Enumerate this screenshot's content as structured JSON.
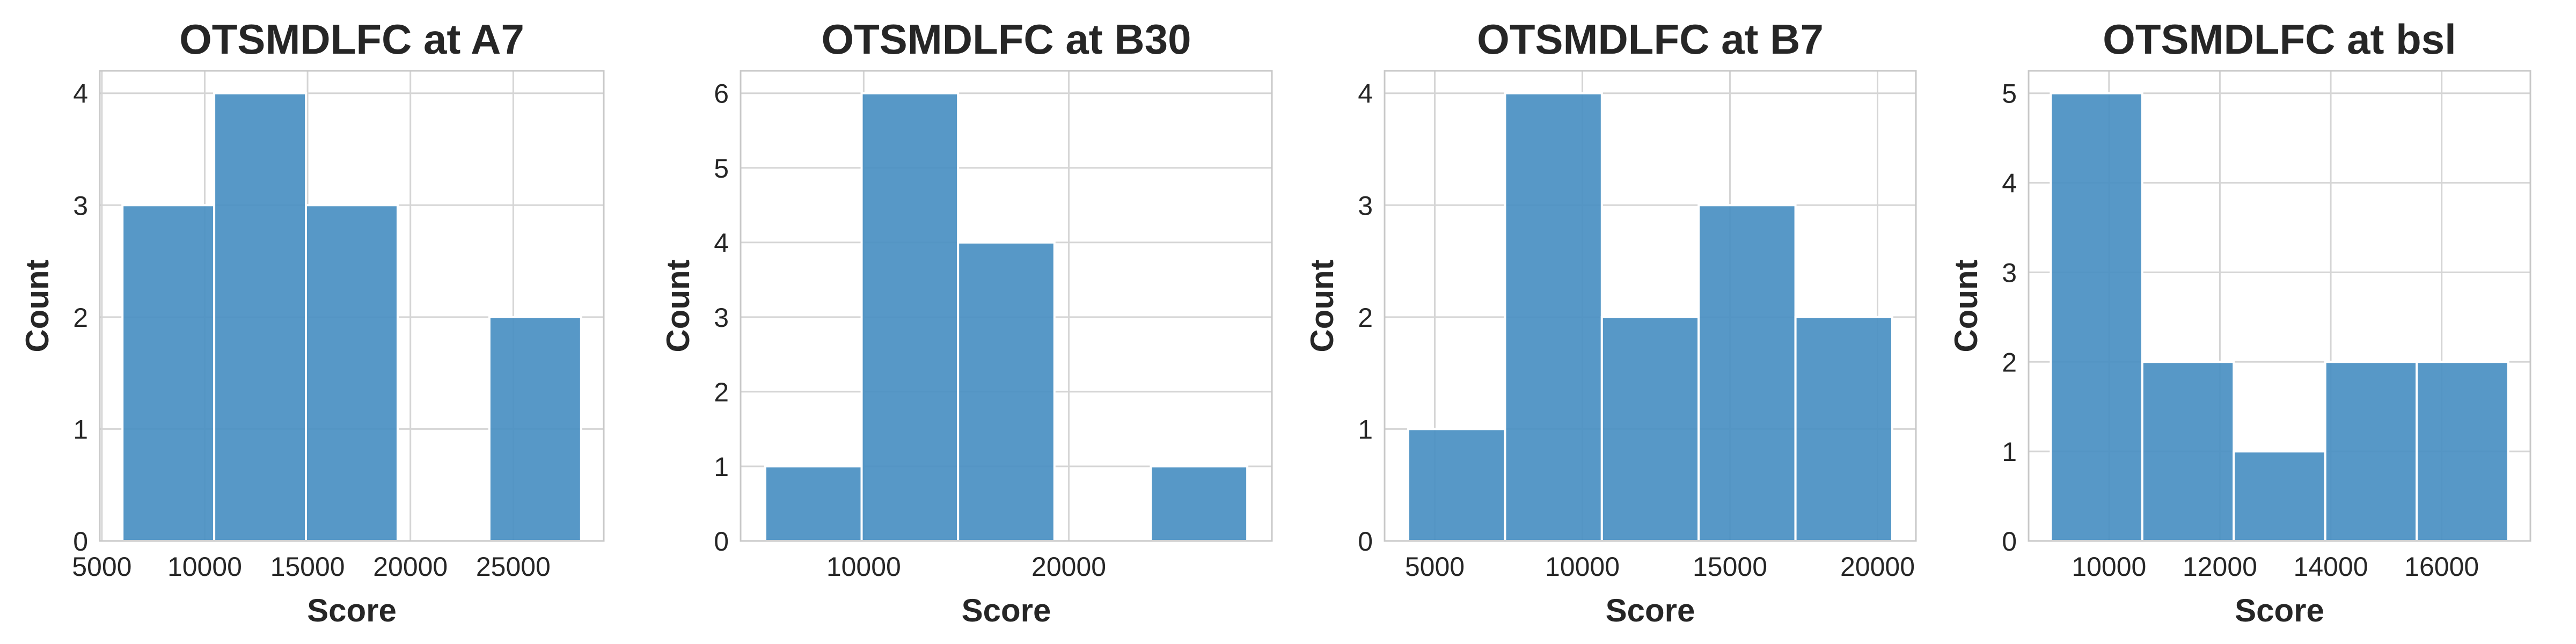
{
  "chart_data": [
    {
      "type": "bar",
      "title": "OTSMDLFC at A7",
      "xlabel": "Score",
      "ylabel": "Count",
      "bins": [
        {
          "x0": 6000,
          "x1": 10460,
          "count": 3
        },
        {
          "x0": 10460,
          "x1": 14920,
          "count": 4
        },
        {
          "x0": 14920,
          "x1": 19380,
          "count": 3
        },
        {
          "x0": 19380,
          "x1": 23840,
          "count": 0
        },
        {
          "x0": 23840,
          "x1": 28300,
          "count": 2
        }
      ],
      "xlim": [
        4900,
        29400
      ],
      "ylim": [
        0,
        4.2
      ],
      "xticks": [
        5000,
        10000,
        15000,
        20000,
        25000
      ],
      "xtick_labels": [
        "5000",
        "10000",
        "15000",
        "20000",
        "25000"
      ],
      "yticks": [
        0,
        1,
        2,
        3,
        4
      ],
      "ytick_labels": [
        "0",
        "1",
        "2",
        "3",
        "4"
      ],
      "grid": true
    },
    {
      "type": "bar",
      "title": "OTSMDLFC at B30",
      "xlabel": "Score",
      "ylabel": "Count",
      "bins": [
        {
          "x0": 5200,
          "x1": 9900,
          "count": 1
        },
        {
          "x0": 9900,
          "x1": 14600,
          "count": 6
        },
        {
          "x0": 14600,
          "x1": 19300,
          "count": 4
        },
        {
          "x0": 19300,
          "x1": 24000,
          "count": 0
        },
        {
          "x0": 24000,
          "x1": 28700,
          "count": 1
        }
      ],
      "xlim": [
        4000,
        29900
      ],
      "ylim": [
        0,
        6.3
      ],
      "xticks": [
        10000,
        20000
      ],
      "xtick_labels": [
        "10000",
        "20000"
      ],
      "yticks": [
        0,
        1,
        2,
        3,
        4,
        5,
        6
      ],
      "ytick_labels": [
        "0",
        "1",
        "2",
        "3",
        "4",
        "5",
        "6"
      ],
      "grid": true
    },
    {
      "type": "bar",
      "title": "OTSMDLFC at B7",
      "xlabel": "Score",
      "ylabel": "Count",
      "bins": [
        {
          "x0": 4100,
          "x1": 7380,
          "count": 1
        },
        {
          "x0": 7380,
          "x1": 10660,
          "count": 4
        },
        {
          "x0": 10660,
          "x1": 13940,
          "count": 2
        },
        {
          "x0": 13940,
          "x1": 17220,
          "count": 3
        },
        {
          "x0": 17220,
          "x1": 20500,
          "count": 2
        }
      ],
      "xlim": [
        3300,
        21300
      ],
      "ylim": [
        0,
        4.2
      ],
      "xticks": [
        5000,
        10000,
        15000,
        20000
      ],
      "xtick_labels": [
        "5000",
        "10000",
        "15000",
        "20000"
      ],
      "yticks": [
        0,
        1,
        2,
        3,
        4
      ],
      "ytick_labels": [
        "0",
        "1",
        "2",
        "3",
        "4"
      ],
      "grid": true
    },
    {
      "type": "bar",
      "title": "OTSMDLFC at bsl",
      "xlabel": "Score",
      "ylabel": "Count",
      "bins": [
        {
          "x0": 8950,
          "x1": 10600,
          "count": 5
        },
        {
          "x0": 10600,
          "x1": 12250,
          "count": 2
        },
        {
          "x0": 12250,
          "x1": 13900,
          "count": 1
        },
        {
          "x0": 13900,
          "x1": 15550,
          "count": 2
        },
        {
          "x0": 15550,
          "x1": 17200,
          "count": 2
        }
      ],
      "xlim": [
        8550,
        17600
      ],
      "ylim": [
        0,
        5.25
      ],
      "xticks": [
        10000,
        12000,
        14000,
        16000
      ],
      "xtick_labels": [
        "10000",
        "12000",
        "14000",
        "16000"
      ],
      "yticks": [
        0,
        1,
        2,
        3,
        4,
        5
      ],
      "ytick_labels": [
        "0",
        "1",
        "2",
        "3",
        "4",
        "5"
      ],
      "grid": true
    }
  ]
}
